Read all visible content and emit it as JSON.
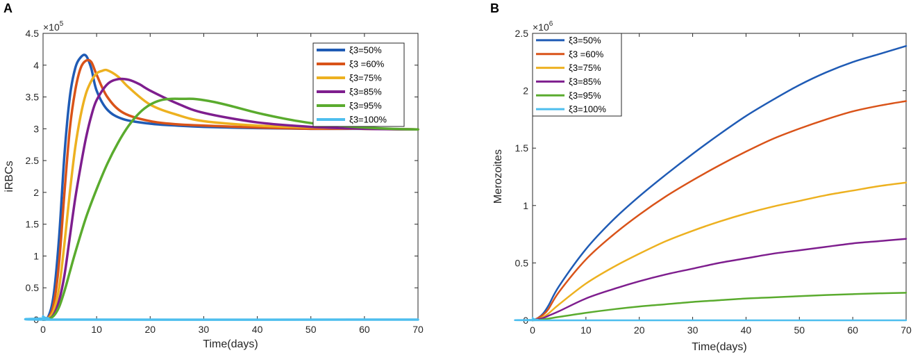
{
  "chart_data": [
    {
      "type": "line",
      "panel": "A",
      "xlabel": "Time(days)",
      "ylabel": "iRBCs",
      "exponent_base": "×10",
      "exponent_power": "5",
      "xlim": [
        0,
        70
      ],
      "ylim": [
        0,
        4.5
      ],
      "xticks": [
        "0",
        "10",
        "20",
        "30",
        "40",
        "50",
        "60",
        "70"
      ],
      "yticks": [
        "0",
        "0.5",
        "1",
        "1.5",
        "2",
        "2.5",
        "3",
        "3.5",
        "4",
        "4.5"
      ],
      "legend_position": "top-right",
      "series": [
        {
          "name": "ξ3=50%",
          "color": "#1f5bb5",
          "x": [
            0,
            1,
            2,
            3,
            4,
            5,
            6,
            7,
            8,
            9,
            10,
            12,
            15,
            20,
            25,
            30,
            40,
            50,
            60,
            70
          ],
          "y": [
            0,
            0.05,
            0.4,
            1.3,
            2.6,
            3.5,
            3.95,
            4.12,
            4.15,
            3.95,
            3.6,
            3.3,
            3.15,
            3.08,
            3.05,
            3.03,
            3.01,
            3.0,
            3.0,
            2.99
          ]
        },
        {
          "name": "ξ3 =60%",
          "color": "#d95319",
          "x": [
            0,
            1,
            2,
            3,
            4,
            5,
            6,
            7,
            8,
            9,
            10,
            12,
            15,
            20,
            25,
            30,
            40,
            50,
            60,
            70
          ],
          "y": [
            0,
            0.03,
            0.25,
            0.9,
            2.0,
            3.0,
            3.6,
            3.95,
            4.07,
            4.05,
            3.85,
            3.5,
            3.25,
            3.12,
            3.07,
            3.05,
            3.02,
            3.0,
            3.0,
            2.99
          ]
        },
        {
          "name": "ξ3=75%",
          "color": "#edb120",
          "x": [
            0,
            1,
            2,
            3,
            4,
            5,
            6,
            7,
            8,
            9,
            10,
            11,
            12,
            14,
            16,
            20,
            25,
            30,
            40,
            50,
            60,
            70
          ],
          "y": [
            0,
            0.02,
            0.15,
            0.5,
            1.2,
            2.0,
            2.7,
            3.2,
            3.55,
            3.75,
            3.87,
            3.91,
            3.92,
            3.82,
            3.65,
            3.38,
            3.22,
            3.12,
            3.05,
            3.02,
            3.0,
            2.99
          ]
        },
        {
          "name": "ξ3=85%",
          "color": "#7e1e8e",
          "x": [
            0,
            1,
            2,
            3,
            4,
            5,
            6,
            7,
            8,
            9,
            10,
            12,
            14,
            16,
            18,
            20,
            25,
            30,
            40,
            50,
            60,
            70
          ],
          "y": [
            0,
            0.01,
            0.08,
            0.3,
            0.7,
            1.3,
            1.9,
            2.4,
            2.85,
            3.2,
            3.45,
            3.7,
            3.78,
            3.77,
            3.7,
            3.6,
            3.4,
            3.25,
            3.1,
            3.03,
            3.0,
            2.99
          ]
        },
        {
          "name": "ξ3=95%",
          "color": "#5aab2e",
          "x": [
            0,
            1,
            2,
            3,
            4,
            5,
            6,
            8,
            10,
            12,
            14,
            16,
            18,
            20,
            22,
            24,
            26,
            28,
            30,
            32,
            35,
            40,
            45,
            50,
            55,
            60,
            65,
            70
          ],
          "y": [
            0,
            0.01,
            0.06,
            0.2,
            0.45,
            0.75,
            1.05,
            1.6,
            2.05,
            2.45,
            2.78,
            3.05,
            3.25,
            3.38,
            3.45,
            3.47,
            3.47,
            3.47,
            3.45,
            3.42,
            3.36,
            3.25,
            3.16,
            3.09,
            3.05,
            3.02,
            3.0,
            2.99
          ]
        },
        {
          "name": "ξ3=100%",
          "color": "#4dbeee",
          "x": [
            0,
            0.3,
            1,
            2,
            70
          ],
          "y": [
            0.05,
            0.03,
            0.02,
            0.0,
            0.0
          ]
        }
      ]
    },
    {
      "type": "line",
      "panel": "B",
      "xlabel": "Time(days)",
      "ylabel": "Merozoites",
      "exponent_base": "×10",
      "exponent_power": "6",
      "xlim": [
        0,
        70
      ],
      "ylim": [
        0,
        2.5
      ],
      "xticks": [
        "0",
        "10",
        "20",
        "30",
        "40",
        "50",
        "60",
        "70"
      ],
      "yticks": [
        "0",
        "0.5",
        "1",
        "1.5",
        "2",
        "2.5"
      ],
      "legend_position": "top-left",
      "series": [
        {
          "name": "ξ3=50%",
          "color": "#1f5bb5",
          "x": [
            0,
            1,
            2,
            3,
            5,
            10,
            15,
            20,
            25,
            30,
            35,
            40,
            45,
            50,
            55,
            60,
            65,
            70
          ],
          "y": [
            0,
            0.02,
            0.06,
            0.13,
            0.3,
            0.62,
            0.87,
            1.08,
            1.27,
            1.45,
            1.62,
            1.78,
            1.92,
            2.05,
            2.16,
            2.25,
            2.32,
            2.39
          ]
        },
        {
          "name": "ξ3 =60%",
          "color": "#d95319",
          "x": [
            0,
            1,
            2,
            3,
            5,
            10,
            15,
            20,
            25,
            30,
            35,
            40,
            45,
            50,
            55,
            60,
            65,
            70
          ],
          "y": [
            0,
            0.02,
            0.05,
            0.1,
            0.25,
            0.53,
            0.74,
            0.92,
            1.08,
            1.22,
            1.35,
            1.47,
            1.58,
            1.67,
            1.75,
            1.82,
            1.87,
            1.91
          ]
        },
        {
          "name": "ξ3=75%",
          "color": "#edb120",
          "x": [
            0,
            1,
            2,
            3,
            5,
            10,
            15,
            20,
            25,
            30,
            35,
            40,
            45,
            50,
            55,
            60,
            65,
            70
          ],
          "y": [
            0,
            0.01,
            0.03,
            0.06,
            0.14,
            0.32,
            0.46,
            0.58,
            0.69,
            0.78,
            0.86,
            0.93,
            0.99,
            1.04,
            1.09,
            1.13,
            1.17,
            1.2
          ]
        },
        {
          "name": "ξ3=85%",
          "color": "#7e1e8e",
          "x": [
            0,
            1,
            2,
            3,
            5,
            10,
            15,
            20,
            25,
            30,
            35,
            40,
            45,
            50,
            55,
            60,
            65,
            70
          ],
          "y": [
            0,
            0.01,
            0.02,
            0.04,
            0.08,
            0.19,
            0.27,
            0.34,
            0.4,
            0.45,
            0.5,
            0.54,
            0.58,
            0.61,
            0.64,
            0.67,
            0.69,
            0.71
          ]
        },
        {
          "name": "ξ3=95%",
          "color": "#5aab2e",
          "x": [
            0,
            1,
            2,
            3,
            5,
            10,
            15,
            20,
            25,
            30,
            35,
            40,
            45,
            50,
            55,
            60,
            65,
            70
          ],
          "y": [
            0,
            0.003,
            0.008,
            0.015,
            0.03,
            0.065,
            0.095,
            0.12,
            0.14,
            0.16,
            0.175,
            0.19,
            0.2,
            0.21,
            0.22,
            0.228,
            0.235,
            0.24
          ]
        },
        {
          "name": "ξ3=100%",
          "color": "#4dbeee",
          "x": [
            0,
            0.3,
            1,
            2,
            70
          ],
          "y": [
            0.02,
            0.01,
            0.005,
            0.0,
            0.0
          ]
        }
      ]
    }
  ]
}
